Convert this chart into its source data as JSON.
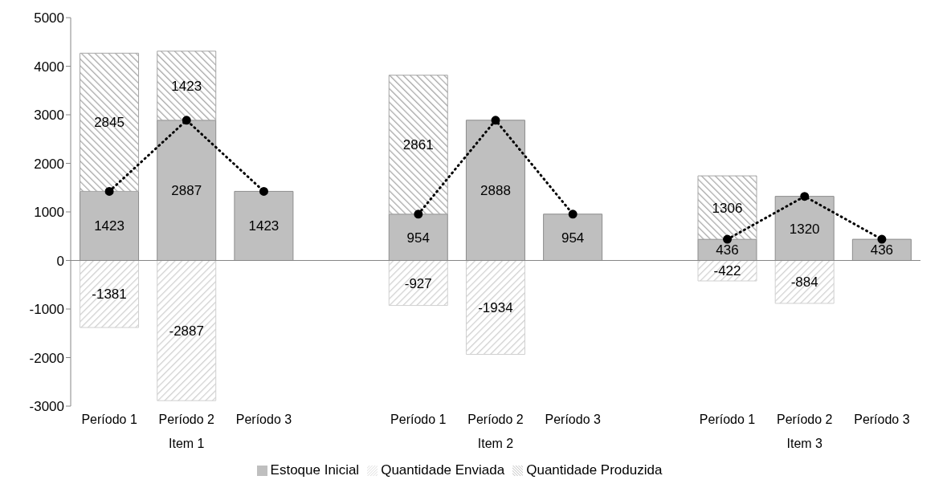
{
  "chart_data": {
    "type": "bar",
    "stacked": true,
    "categories": [
      "Período 1",
      "Período 2",
      "Período 3",
      null,
      "Período 1",
      "Período 2",
      "Período 3",
      null,
      "Período 1",
      "Período 2",
      "Período 3"
    ],
    "series": [
      {
        "name": "Estoque Inicial",
        "color": "#bfbfbf",
        "values": [
          1423,
          2887,
          1423,
          null,
          954,
          2888,
          954,
          null,
          436,
          1320,
          436
        ]
      },
      {
        "name": "Quantidade Produzida",
        "color": "#a6a6a6",
        "values": [
          2845,
          1423,
          null,
          null,
          2861,
          null,
          null,
          null,
          1306,
          null,
          null
        ]
      },
      {
        "name": "Quantidade Enviada",
        "color": "#d0d0d0",
        "values": [
          -1381,
          -2887,
          null,
          null,
          -927,
          -1934,
          null,
          null,
          -422,
          -884,
          null
        ]
      },
      {
        "type": "line",
        "color": "#000000",
        "values": [
          1423,
          2887,
          1423,
          null,
          954,
          2888,
          954,
          null,
          436,
          1320,
          436
        ],
        "marker": "circle",
        "line_style": "dotted",
        "value_labels": [
          null,
          null,
          null,
          null,
          null,
          null,
          null,
          null,
          null,
          null,
          null
        ]
      }
    ],
    "annotations": [
      "Item 1",
      "Item 2",
      "Item 3"
    ],
    "ylim": [
      -3000,
      5000
    ],
    "yticks": [
      -3000,
      -2000,
      -1000,
      0,
      1000,
      2000,
      3000,
      4000,
      5000
    ],
    "grid": false,
    "ref_lines": [
      {
        "axis": "y",
        "value": 0,
        "color": "#868686"
      }
    ],
    "legend": "bottom",
    "data_labels": true
  }
}
